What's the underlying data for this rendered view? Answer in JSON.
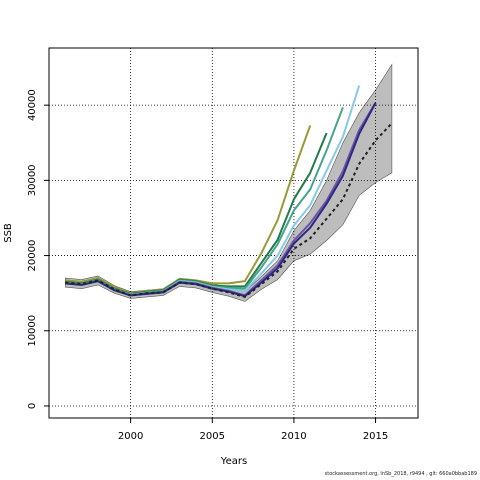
{
  "chart_data": {
    "type": "line",
    "xlabel": "Years",
    "ylabel": "SSB",
    "xlim": [
      1995,
      2017.6
    ],
    "ylim": [
      -1600,
      47600
    ],
    "xticks": [
      2000,
      2005,
      2010,
      2015
    ],
    "yticks": [
      0,
      10000,
      20000,
      30000,
      40000
    ],
    "grid": "dotted",
    "legend": "none",
    "footnote": "stockassessment.org, lnSb_2018, r9494 , git: 660a0bbab189",
    "confidence_band": {
      "color": "#bdbdbd",
      "x": [
        1996,
        1997,
        1998,
        1999,
        2000,
        2001,
        2002,
        2003,
        2004,
        2005,
        2006,
        2007,
        2008,
        2009,
        2010,
        2011,
        2012,
        2013,
        2014,
        2015,
        2016
      ],
      "lower": [
        15800,
        15600,
        16100,
        15000,
        14300,
        14500,
        14700,
        15900,
        15700,
        15100,
        14600,
        13900,
        15500,
        16800,
        19300,
        20200,
        22000,
        24100,
        28000,
        29700,
        31000
      ],
      "upper": [
        17000,
        16800,
        17300,
        16000,
        15200,
        15400,
        15600,
        16900,
        16700,
        16200,
        15800,
        15200,
        17200,
        19300,
        23300,
        26000,
        30000,
        35000,
        39000,
        42000,
        45400
      ]
    },
    "series": [
      {
        "color": "#9a9a34",
        "width": 2,
        "x": [
          1996,
          1997,
          1998,
          1999,
          2000,
          2001,
          2002,
          2003,
          2004,
          2005,
          2006,
          2007,
          2008,
          2009,
          2010,
          2011
        ],
        "values": [
          16700,
          16500,
          17000,
          15800,
          15000,
          15300,
          15500,
          16900,
          16700,
          16300,
          16300,
          16600,
          20300,
          24700,
          31300,
          37300
        ]
      },
      {
        "color": "#237a4b",
        "width": 2,
        "x": [
          1996,
          1997,
          1998,
          1999,
          2000,
          2001,
          2002,
          2003,
          2004,
          2005,
          2006,
          2007,
          2008,
          2009,
          2010,
          2011,
          2012
        ],
        "values": [
          16500,
          16300,
          16800,
          15600,
          14900,
          15200,
          15400,
          16800,
          16600,
          16000,
          15900,
          15900,
          19000,
          22100,
          27500,
          31000,
          36300
        ]
      },
      {
        "color": "#45a58b",
        "width": 2,
        "x": [
          1996,
          1997,
          1998,
          1999,
          2000,
          2001,
          2002,
          2003,
          2004,
          2005,
          2006,
          2007,
          2008,
          2009,
          2010,
          2011,
          2012,
          2013
        ],
        "values": [
          16400,
          16200,
          16700,
          15500,
          14800,
          15100,
          15300,
          16700,
          16500,
          15900,
          15700,
          15600,
          18400,
          21500,
          26000,
          28800,
          34000,
          39700
        ]
      },
      {
        "color": "#88c9e8",
        "width": 2,
        "x": [
          1996,
          1997,
          1998,
          1999,
          2000,
          2001,
          2002,
          2003,
          2004,
          2005,
          2006,
          2007,
          2008,
          2009,
          2010,
          2011,
          2012,
          2013,
          2014
        ],
        "values": [
          16300,
          16100,
          16600,
          15400,
          14800,
          15000,
          15200,
          16600,
          16400,
          15800,
          15500,
          15300,
          17600,
          20000,
          24000,
          26700,
          31300,
          35800,
          42600
        ]
      },
      {
        "color": "#6f53a3",
        "width": 2,
        "x": [
          1996,
          1997,
          1998,
          1999,
          2000,
          2001,
          2002,
          2003,
          2004,
          2005,
          2006,
          2007,
          2008,
          2009,
          2010,
          2011,
          2012,
          2013,
          2014,
          2015
        ],
        "values": [
          16300,
          16100,
          16600,
          15400,
          14700,
          15000,
          15200,
          16500,
          16300,
          15700,
          15300,
          14700,
          16700,
          18700,
          22000,
          24300,
          27300,
          31200,
          36700,
          40300
        ]
      },
      {
        "color": "#2a2a86",
        "width": 2,
        "x": [
          1996,
          1997,
          1998,
          1999,
          2000,
          2001,
          2002,
          2003,
          2004,
          2005,
          2006,
          2007,
          2008,
          2009,
          2010,
          2011,
          2012,
          2013,
          2014,
          2015
        ],
        "values": [
          16300,
          16100,
          16600,
          15400,
          14700,
          14900,
          15100,
          16400,
          16200,
          15600,
          15200,
          14600,
          16400,
          18300,
          21600,
          23700,
          26900,
          30600,
          36200,
          40300
        ]
      },
      {
        "color": "#222222",
        "width": 2,
        "dash": "3,3",
        "x": [
          1996,
          1997,
          1998,
          1999,
          2000,
          2001,
          2002,
          2003,
          2004,
          2005,
          2006,
          2007,
          2008,
          2009,
          2010,
          2011,
          2012,
          2013,
          2014,
          2015,
          2016
        ],
        "values": [
          16400,
          16200,
          16700,
          15500,
          14700,
          15000,
          15100,
          16400,
          16200,
          15600,
          15100,
          14500,
          16200,
          17900,
          20900,
          22300,
          24900,
          27500,
          32200,
          35300,
          37600
        ]
      }
    ]
  }
}
